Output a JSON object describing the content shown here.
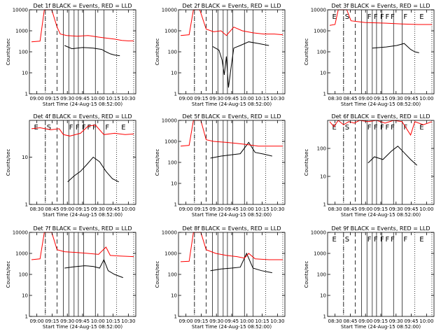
{
  "xlabel_prefix": "Start Time",
  "xlabel_date": "(24-Aug-15 08:52:00)",
  "ylabel": "Counts/sec",
  "flag_letters": [
    "E",
    "S",
    "F",
    "F",
    "F",
    "F",
    "F",
    "F",
    "E"
  ],
  "colors": {
    "events": "#000000",
    "lld": "#ff0000"
  },
  "chart_data": [
    {
      "type": "line",
      "title": "Det 1f BLACK = Events, RED = LLD",
      "xticks": [
        "09:00",
        "09:15",
        "09:30",
        "09:45",
        "10:00",
        "10:15",
        "10:30"
      ],
      "ylim": [
        1,
        10000
      ],
      "ytick_labels": [
        "1",
        "10",
        "100",
        "1000",
        "10000"
      ],
      "scale": "log",
      "show_flags": false,
      "series": [
        {
          "name": "Events",
          "color": "#000000",
          "points": [
            [
              0.33,
              200
            ],
            [
              0.4,
              140
            ],
            [
              0.5,
              160
            ],
            [
              0.6,
              150
            ],
            [
              0.68,
              130
            ],
            [
              0.72,
              100
            ],
            [
              0.76,
              80
            ],
            [
              0.8,
              70
            ],
            [
              0.85,
              65
            ]
          ]
        },
        {
          "name": "LLD",
          "color": "#ff0000",
          "points": [
            [
              0.02,
              300
            ],
            [
              0.1,
              320
            ],
            [
              0.14,
              10000
            ],
            [
              0.21,
              10000
            ],
            [
              0.26,
              1500
            ],
            [
              0.29,
              700
            ],
            [
              0.35,
              600
            ],
            [
              0.45,
              550
            ],
            [
              0.55,
              600
            ],
            [
              0.65,
              500
            ],
            [
              0.72,
              450
            ],
            [
              0.8,
              400
            ],
            [
              0.87,
              350
            ],
            [
              0.93,
              330
            ],
            [
              0.98,
              330
            ]
          ]
        }
      ]
    },
    {
      "type": "line",
      "title": "Det 2f BLACK = Events, RED = LLD",
      "xticks": [
        "09:00",
        "09:15",
        "09:30",
        "09:45",
        "10:00",
        "10:15",
        "10:30"
      ],
      "ylim": [
        1,
        10000
      ],
      "ytick_labels": [
        "1",
        "10",
        "100",
        "1000",
        "10000"
      ],
      "scale": "log",
      "show_flags": false,
      "series": [
        {
          "name": "Events",
          "color": "#000000",
          "points": [
            [
              0.32,
              180
            ],
            [
              0.38,
              120
            ],
            [
              0.41,
              40
            ],
            [
              0.43,
              8
            ],
            [
              0.45,
              60
            ],
            [
              0.47,
              2
            ],
            [
              0.5,
              30
            ],
            [
              0.52,
              150
            ],
            [
              0.58,
              200
            ],
            [
              0.66,
              300
            ],
            [
              0.75,
              250
            ],
            [
              0.85,
              200
            ]
          ]
        },
        {
          "name": "LLD",
          "color": "#ff0000",
          "points": [
            [
              0.02,
              600
            ],
            [
              0.1,
              650
            ],
            [
              0.14,
              10000
            ],
            [
              0.2,
              10000
            ],
            [
              0.26,
              1200
            ],
            [
              0.33,
              900
            ],
            [
              0.4,
              1000
            ],
            [
              0.45,
              600
            ],
            [
              0.52,
              1500
            ],
            [
              0.6,
              1000
            ],
            [
              0.7,
              800
            ],
            [
              0.8,
              700
            ],
            [
              0.9,
              700
            ],
            [
              0.98,
              650
            ]
          ]
        }
      ]
    },
    {
      "type": "line",
      "title": "Det 3f BLACK = Events, RED = LLD",
      "xticks": [
        "08:30",
        "08:45",
        "09:00",
        "09:15",
        "09:30",
        "09:45",
        "10:00"
      ],
      "ylim": [
        1,
        10000
      ],
      "ytick_labels": [
        "1",
        "10",
        "100",
        "1000",
        "10000"
      ],
      "scale": "log",
      "show_flags": true,
      "series": [
        {
          "name": "Events",
          "color": "#000000",
          "points": [
            [
              0.42,
              150
            ],
            [
              0.55,
              170
            ],
            [
              0.65,
              200
            ],
            [
              0.72,
              250
            ],
            [
              0.78,
              130
            ],
            [
              0.82,
              100
            ],
            [
              0.86,
              90
            ]
          ]
        },
        {
          "name": "LLD",
          "color": "#ff0000",
          "points": [
            [
              0.02,
              1800
            ],
            [
              0.07,
              2000
            ],
            [
              0.1,
              10000
            ],
            [
              0.18,
              10000
            ],
            [
              0.22,
              3000
            ],
            [
              0.35,
              2500
            ],
            [
              0.55,
              2300
            ],
            [
              0.7,
              2100
            ],
            [
              0.85,
              2000
            ],
            [
              0.98,
              2000
            ]
          ]
        }
      ]
    },
    {
      "type": "line",
      "title": "Det 4f BLACK = Events, RED = LLD",
      "xticks": [
        "08:30",
        "08:45",
        "09:00",
        "09:15",
        "09:30",
        "09:45",
        "10:00"
      ],
      "ylim": [
        1,
        60
      ],
      "ytick_labels": [
        "1",
        "10"
      ],
      "scale": "log",
      "show_flags": true,
      "series": [
        {
          "name": "Events",
          "color": "#000000",
          "points": [
            [
              0.36,
              3
            ],
            [
              0.42,
              4
            ],
            [
              0.48,
              5
            ],
            [
              0.54,
              7
            ],
            [
              0.6,
              10
            ],
            [
              0.66,
              8
            ],
            [
              0.72,
              5
            ],
            [
              0.78,
              3.5
            ],
            [
              0.84,
              3
            ]
          ]
        },
        {
          "name": "LLD",
          "color": "#ff0000",
          "points": [
            [
              0.02,
              40
            ],
            [
              0.1,
              42
            ],
            [
              0.2,
              38
            ],
            [
              0.28,
              40
            ],
            [
              0.32,
              30
            ],
            [
              0.38,
              28
            ],
            [
              0.48,
              32
            ],
            [
              0.55,
              45
            ],
            [
              0.62,
              48
            ],
            [
              0.7,
              30
            ],
            [
              0.8,
              32
            ],
            [
              0.9,
              30
            ],
            [
              0.98,
              31
            ]
          ]
        }
      ]
    },
    {
      "type": "line",
      "title": "Det 5f BLACK = Events, RED = LLD",
      "xticks": [
        "09:00",
        "09:15",
        "09:30",
        "09:45",
        "10:00",
        "10:15",
        "10:30"
      ],
      "ylim": [
        1,
        10000
      ],
      "ytick_labels": [
        "1",
        "10",
        "100",
        "1000",
        "10000"
      ],
      "scale": "log",
      "show_flags": false,
      "series": [
        {
          "name": "Events",
          "color": "#000000",
          "points": [
            [
              0.3,
              160
            ],
            [
              0.4,
              200
            ],
            [
              0.5,
              230
            ],
            [
              0.58,
              260
            ],
            [
              0.66,
              900
            ],
            [
              0.72,
              300
            ],
            [
              0.8,
              250
            ],
            [
              0.88,
              200
            ]
          ]
        },
        {
          "name": "LLD",
          "color": "#ff0000",
          "points": [
            [
              0.02,
              600
            ],
            [
              0.1,
              650
            ],
            [
              0.14,
              10000
            ],
            [
              0.21,
              10000
            ],
            [
              0.26,
              1200
            ],
            [
              0.33,
              1000
            ],
            [
              0.45,
              900
            ],
            [
              0.55,
              800
            ],
            [
              0.65,
              700
            ],
            [
              0.75,
              600
            ],
            [
              0.88,
              600
            ],
            [
              0.98,
              600
            ]
          ]
        }
      ]
    },
    {
      "type": "line",
      "title": "Det 6f BLACK = Events, RED = LLD",
      "xticks": [
        "08:30",
        "08:45",
        "09:00",
        "09:15",
        "09:30",
        "09:45",
        "10:00"
      ],
      "ylim": [
        1,
        1000
      ],
      "ytick_labels": [
        "1",
        "10",
        "100"
      ],
      "scale": "log",
      "show_flags": true,
      "series": [
        {
          "name": "Events",
          "color": "#000000",
          "points": [
            [
              0.38,
              30
            ],
            [
              0.44,
              50
            ],
            [
              0.52,
              40
            ],
            [
              0.6,
              80
            ],
            [
              0.66,
              120
            ],
            [
              0.72,
              70
            ],
            [
              0.78,
              40
            ],
            [
              0.84,
              25
            ]
          ]
        },
        {
          "name": "LLD",
          "color": "#ff0000",
          "points": [
            [
              0.02,
              900
            ],
            [
              0.06,
              600
            ],
            [
              0.1,
              1000
            ],
            [
              0.15,
              700
            ],
            [
              0.2,
              900
            ],
            [
              0.25,
              800
            ],
            [
              0.3,
              1000
            ],
            [
              0.38,
              900
            ],
            [
              0.46,
              1000
            ],
            [
              0.54,
              800
            ],
            [
              0.62,
              1000
            ],
            [
              0.7,
              900
            ],
            [
              0.78,
              300
            ],
            [
              0.82,
              900
            ],
            [
              0.9,
              700
            ],
            [
              0.98,
              900
            ]
          ]
        }
      ]
    },
    {
      "type": "line",
      "title": "Det 7f BLACK = Events, RED = LLD",
      "xticks": [
        "09:00",
        "09:15",
        "09:30",
        "09:45",
        "10:00",
        "10:15",
        "10:30"
      ],
      "ylim": [
        1,
        10000
      ],
      "ytick_labels": [
        "1",
        "10",
        "100",
        "1000",
        "10000"
      ],
      "scale": "log",
      "show_flags": false,
      "series": [
        {
          "name": "Events",
          "color": "#000000",
          "points": [
            [
              0.33,
              200
            ],
            [
              0.42,
              230
            ],
            [
              0.52,
              260
            ],
            [
              0.6,
              240
            ],
            [
              0.66,
              200
            ],
            [
              0.7,
              500
            ],
            [
              0.74,
              150
            ],
            [
              0.8,
              100
            ],
            [
              0.88,
              70
            ]
          ]
        },
        {
          "name": "LLD",
          "color": "#ff0000",
          "points": [
            [
              0.02,
              500
            ],
            [
              0.1,
              550
            ],
            [
              0.14,
              10000
            ],
            [
              0.21,
              10000
            ],
            [
              0.26,
              1500
            ],
            [
              0.33,
              1200
            ],
            [
              0.45,
              1100
            ],
            [
              0.55,
              1000
            ],
            [
              0.65,
              900
            ],
            [
              0.72,
              2000
            ],
            [
              0.76,
              800
            ],
            [
              0.85,
              750
            ],
            [
              0.98,
              700
            ]
          ]
        }
      ]
    },
    {
      "type": "line",
      "title": "Det 8f BLACK = Events, RED = LLD",
      "xticks": [
        "09:00",
        "09:15",
        "09:30",
        "09:45",
        "10:00",
        "10:15",
        "10:30"
      ],
      "ylim": [
        1,
        10000
      ],
      "ytick_labels": [
        "1",
        "10",
        "100",
        "1000",
        "10000"
      ],
      "scale": "log",
      "show_flags": false,
      "series": [
        {
          "name": "Events",
          "color": "#000000",
          "points": [
            [
              0.3,
              150
            ],
            [
              0.4,
              180
            ],
            [
              0.5,
              200
            ],
            [
              0.58,
              220
            ],
            [
              0.64,
              1000
            ],
            [
              0.7,
              200
            ],
            [
              0.78,
              150
            ],
            [
              0.88,
              120
            ]
          ]
        },
        {
          "name": "LLD",
          "color": "#ff0000",
          "points": [
            [
              0.02,
              400
            ],
            [
              0.1,
              420
            ],
            [
              0.14,
              10000
            ],
            [
              0.21,
              10000
            ],
            [
              0.26,
              1500
            ],
            [
              0.35,
              1000
            ],
            [
              0.45,
              800
            ],
            [
              0.55,
              700
            ],
            [
              0.62,
              600
            ],
            [
              0.66,
              1000
            ],
            [
              0.72,
              550
            ],
            [
              0.85,
              500
            ],
            [
              0.98,
              500
            ]
          ]
        }
      ]
    },
    {
      "type": "line",
      "title": "Det 9f BLACK = Events, RED = LLD",
      "xticks": [
        "08:30",
        "08:45",
        "09:00",
        "09:15",
        "09:30",
        "09:45",
        "10:00"
      ],
      "ylim": [
        1,
        10000
      ],
      "ytick_labels": [
        "1",
        "10",
        "100",
        "1000",
        "10000"
      ],
      "scale": "log",
      "show_flags": true,
      "series": []
    }
  ]
}
